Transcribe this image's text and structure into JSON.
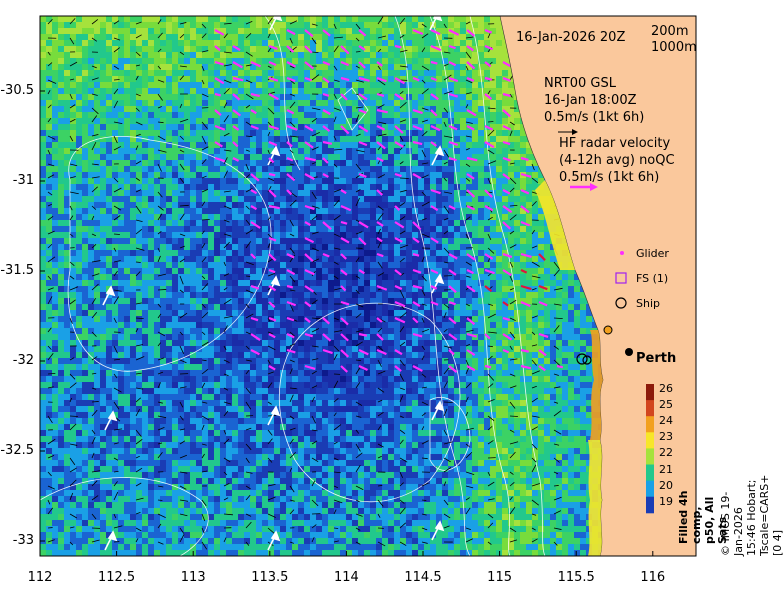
{
  "map": {
    "date_label": "16-Jan-2026 20Z",
    "isobaths": [
      "200m",
      "1000m"
    ],
    "model_label": [
      "NRT00 GSL",
      "16-Jan 18:00Z",
      "0.5m/s (1kt 6h)"
    ],
    "radar_label": [
      "HF radar velocity",
      "(4-12h avg) noQC",
      "0.5m/s (1kt 6h)"
    ],
    "city": "Perth",
    "legend": {
      "glider": "Glider",
      "fs": "FS (1)",
      "ship": "Ship"
    },
    "colorbar": {
      "title": "Filled 4h comp, p50, All Sats",
      "ticks": [
        "26",
        "25",
        "24",
        "23",
        "22",
        "21",
        "20",
        "19"
      ],
      "colors": [
        "#8c1a0a",
        "#d2451e",
        "#f2a01e",
        "#f7e62a",
        "#a6e23c",
        "#22c88c",
        "#1aa0e6",
        "#1a3cb4"
      ]
    },
    "credit": "© IMOS 19-Jan-2026 15:46 Hobart; Tscale=CARS+[0 4]",
    "xticks": [
      "112",
      "112.5",
      "113",
      "113.5",
      "114",
      "114.5",
      "115",
      "115.5",
      "116"
    ],
    "yticks": [
      "-30.5",
      "-31",
      "-31.5",
      "-32",
      "-32.5",
      "-33"
    ]
  }
}
